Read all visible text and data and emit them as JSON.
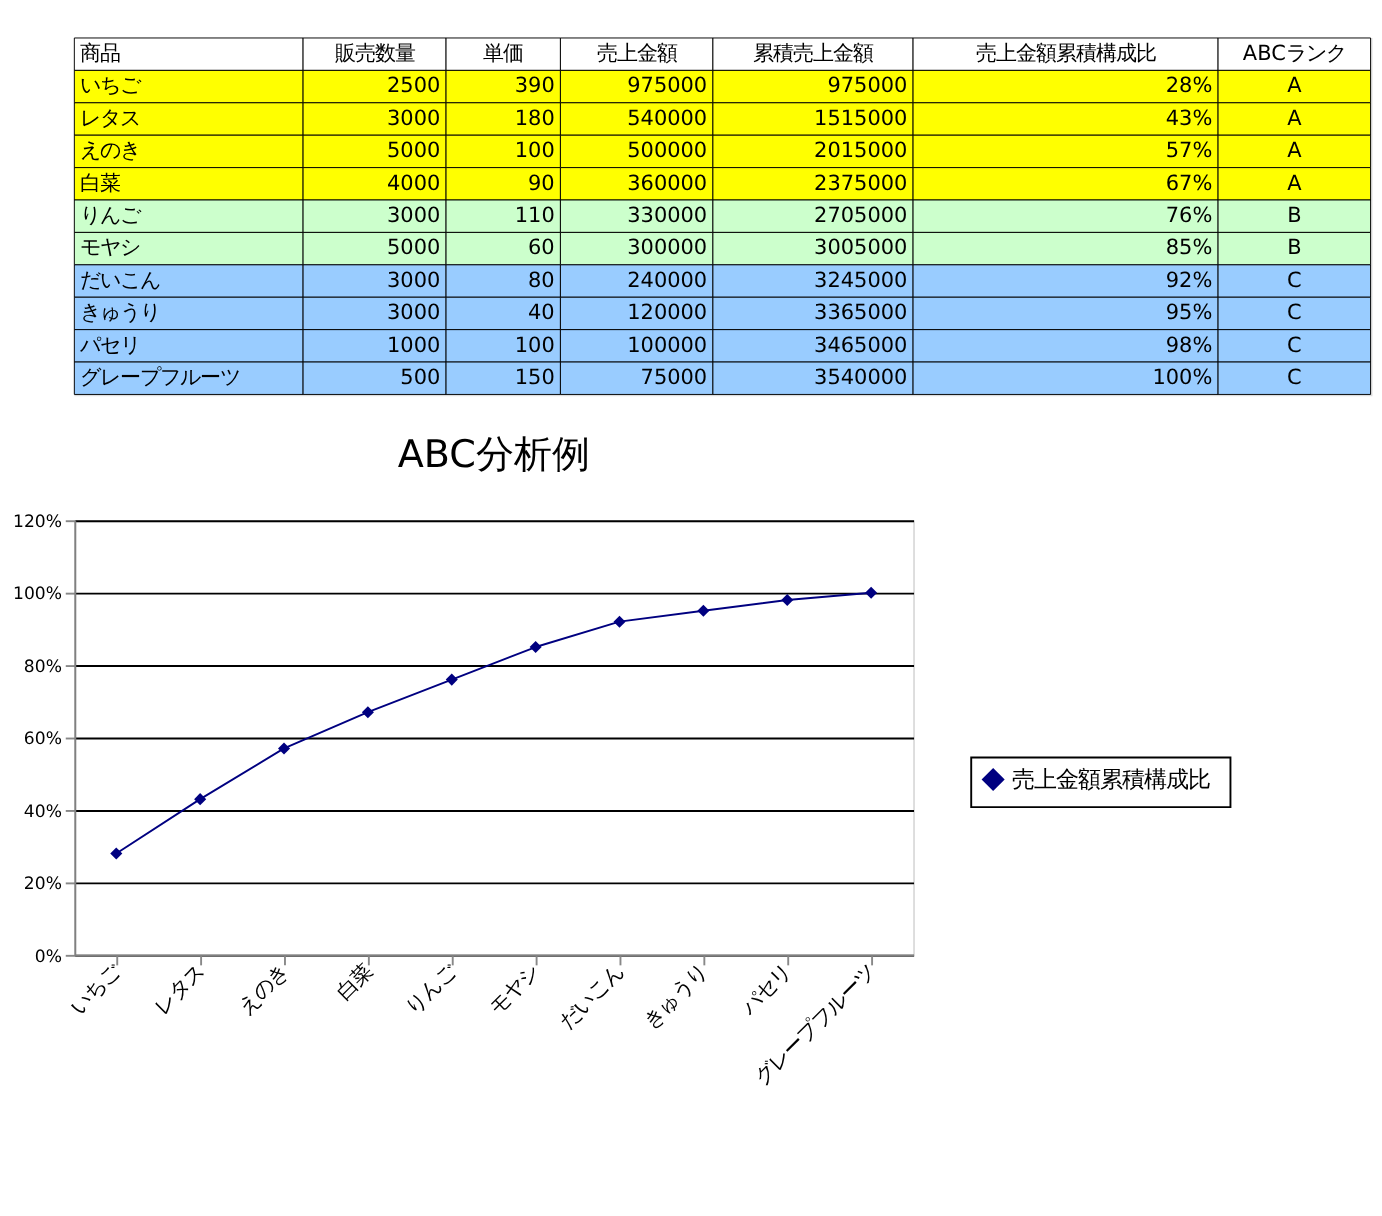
{
  "chart_data": [
    {
      "type": "other",
      "categories": [
        "商品",
        "販売数量",
        "単価",
        "売上金額",
        "累積売上金額",
        "売上金額累積構成比",
        "ABCランク"
      ],
      "cell_labels": [
        [
          "いちご",
          "2500",
          "390",
          "975000",
          "975000",
          "28%",
          "A"
        ],
        [
          "レタス",
          "3000",
          "180",
          "540000",
          "1515000",
          "43%",
          "A"
        ],
        [
          "えのき",
          "5000",
          "100",
          "500000",
          "2015000",
          "57%",
          "A"
        ],
        [
          "白菜",
          "4000",
          "90",
          "360000",
          "2375000",
          "67%",
          "A"
        ],
        [
          "りんご",
          "3000",
          "110",
          "330000",
          "2705000",
          "76%",
          "B"
        ],
        [
          "モヤシ",
          "5000",
          "60",
          "300000",
          "3005000",
          "85%",
          "B"
        ],
        [
          "だいこん",
          "3000",
          "80",
          "240000",
          "3245000",
          "92%",
          "C"
        ],
        [
          "きゅうり",
          "3000",
          "40",
          "120000",
          "3365000",
          "95%",
          "C"
        ],
        [
          "パセリ",
          "1000",
          "100",
          "100000",
          "3465000",
          "98%",
          "C"
        ],
        [
          "グレープフルーツ",
          "500",
          "150",
          "75000",
          "3540000",
          "100%",
          "C"
        ]
      ],
      "colors": [
        [
          "#ffff00",
          "#ffff00",
          "#ffff00",
          "#ffff00",
          "#ffff00",
          "#ffff00",
          "#ffff00"
        ],
        [
          "#ffff00",
          "#ffff00",
          "#ffff00",
          "#ffff00",
          "#ffff00",
          "#ffff00",
          "#ffff00"
        ],
        [
          "#ffff00",
          "#ffff00",
          "#ffff00",
          "#ffff00",
          "#ffff00",
          "#ffff00",
          "#ffff00"
        ],
        [
          "#ffff00",
          "#ffff00",
          "#ffff00",
          "#ffff00",
          "#ffff00",
          "#ffff00",
          "#ffff00"
        ],
        [
          "#ccffcc",
          "#ccffcc",
          "#ccffcc",
          "#ccffcc",
          "#ccffcc",
          "#ccffcc",
          "#ccffcc"
        ],
        [
          "#ccffcc",
          "#ccffcc",
          "#ccffcc",
          "#ccffcc",
          "#ccffcc",
          "#ccffcc",
          "#ccffcc"
        ],
        [
          "#99ccff",
          "#99ccff",
          "#99ccff",
          "#99ccff",
          "#99ccff",
          "#99ccff",
          "#99ccff"
        ],
        [
          "#99ccff",
          "#99ccff",
          "#99ccff",
          "#99ccff",
          "#99ccff",
          "#99ccff",
          "#99ccff"
        ],
        [
          "#99ccff",
          "#99ccff",
          "#99ccff",
          "#99ccff",
          "#99ccff",
          "#99ccff",
          "#99ccff"
        ],
        [
          "#99ccff",
          "#99ccff",
          "#99ccff",
          "#99ccff",
          "#99ccff",
          "#99ccff",
          "#99ccff"
        ]
      ]
    },
    {
      "type": "line",
      "title": "ABC分析例",
      "categories": [
        "いちご",
        "レタス",
        "えのき",
        "白菜",
        "りんご",
        "モヤシ",
        "だいこん",
        "きゅうり",
        "パセリ",
        "グレープフルーツ"
      ],
      "series": [
        {
          "name": "売上金額累積構成比",
          "color": "#000080",
          "values": [
            28,
            43,
            57,
            67,
            76,
            85,
            92,
            95,
            98,
            100
          ]
        }
      ],
      "ylim": [
        0,
        120
      ],
      "yticks": [
        {
          "value": 0,
          "label": "0%"
        },
        {
          "value": 20,
          "label": "20%"
        },
        {
          "value": 40,
          "label": "40%"
        },
        {
          "value": 60,
          "label": "60%"
        },
        {
          "value": 80,
          "label": "80%"
        },
        {
          "value": 100,
          "label": "100%"
        },
        {
          "value": 120,
          "label": "120%"
        }
      ],
      "grid": "y",
      "legend": "right",
      "marker": "diamond",
      "line_style": "solid"
    }
  ]
}
